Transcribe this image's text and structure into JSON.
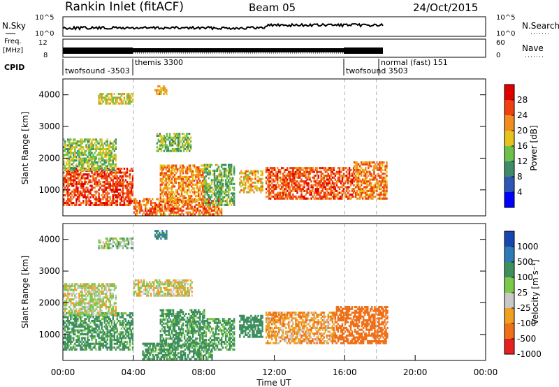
{
  "header": {
    "station": "Rankin Inlet (fitACF)",
    "beam": "Beam 05",
    "date": "24/Oct/2015"
  },
  "status_panels": {
    "nsky_label": "N.Sky",
    "nsky_ticks": [
      "10^5",
      "10^0"
    ],
    "nsearch_label": "N.Search",
    "nsearch_ticks": [
      "10^5",
      "10^0"
    ],
    "freq_label_1": "Freq.",
    "freq_label_2": "[MHz]",
    "freq_ticks": [
      "12",
      "8"
    ],
    "nave_label": "Nave",
    "nave_ticks": [
      "60",
      "0"
    ],
    "cpid_label": "CPID",
    "cpid_labels": [
      "twofsound -3503",
      "themis 3300",
      "twofsound 3503",
      "normal (fast) 151"
    ]
  },
  "chart_data": [
    {
      "type": "heatmap",
      "title": "Power",
      "ylabel": "Slant Range [km]",
      "ylim": [
        180,
        4500
      ],
      "xlim": [
        0,
        24
      ],
      "yticks": [
        "1000",
        "2000",
        "3000",
        "4000"
      ],
      "xticks": [
        "00:00",
        "04:00",
        "08:00",
        "12:00",
        "16:00",
        "20:00",
        "00:00"
      ],
      "colorbar_label": "Power [dB]",
      "colorbar_ticks": [
        "4",
        "8",
        "12",
        "16",
        "20",
        "24",
        "28"
      ],
      "colors": [
        "#0000ff",
        "#2e56b8",
        "#3f8a68",
        "#6ac24a",
        "#e6c21c",
        "#f28c1e",
        "#f04010",
        "#e00000"
      ],
      "mode_boundaries_hours": [
        4.0,
        16.0,
        17.8
      ],
      "echo_regions": [
        {
          "t0": 0.0,
          "t1": 4.0,
          "r0": 500,
          "r1": 1700,
          "v": 26
        },
        {
          "t0": 0.0,
          "t1": 3.0,
          "r0": 1600,
          "r1": 2600,
          "v": 15
        },
        {
          "t0": 4.0,
          "t1": 9.0,
          "r0": 200,
          "r1": 700,
          "v": 24
        },
        {
          "t0": 5.5,
          "t1": 8.0,
          "r0": 600,
          "r1": 1800,
          "v": 22
        },
        {
          "t0": 8.0,
          "t1": 9.7,
          "r0": 500,
          "r1": 1800,
          "v": 13
        },
        {
          "t0": 10.0,
          "t1": 11.3,
          "r0": 900,
          "r1": 1600,
          "v": 20
        },
        {
          "t0": 11.5,
          "t1": 16.5,
          "r0": 700,
          "r1": 1700,
          "v": 25
        },
        {
          "t0": 16.5,
          "t1": 18.4,
          "r0": 700,
          "r1": 1900,
          "v": 23
        },
        {
          "t0": 5.3,
          "t1": 7.3,
          "r0": 2200,
          "r1": 2750,
          "v": 14
        },
        {
          "t0": 2.0,
          "t1": 4.0,
          "r0": 3700,
          "r1": 4050,
          "v": 18
        },
        {
          "t0": 5.2,
          "t1": 5.9,
          "r0": 4000,
          "r1": 4300,
          "v": 20
        }
      ]
    },
    {
      "type": "heatmap",
      "title": "Velocity",
      "ylabel": "Slant Range [km]",
      "ylim": [
        180,
        4500
      ],
      "xlim": [
        0,
        24
      ],
      "xlabel": "Time UT",
      "yticks": [
        "1000",
        "2000",
        "3000",
        "4000"
      ],
      "xticks": [
        "00:00",
        "04:00",
        "08:00",
        "12:00",
        "16:00",
        "20:00",
        "00:00"
      ],
      "colorbar_label": "Velocity [m s⁻¹]",
      "colorbar_ticks": [
        "1000",
        "500",
        "100",
        "25",
        "-25",
        "-100",
        "-500",
        "-1000"
      ],
      "colors": [
        "#1846b0",
        "#2e7ab8",
        "#3e8f5e",
        "#7cc84a",
        "#c8c8c8",
        "#f0a020",
        "#f07018",
        "#e62020"
      ],
      "mode_boundaries_hours": [
        4.0,
        16.0,
        17.8
      ],
      "echo_regions": [
        {
          "t0": 0.0,
          "t1": 4.0,
          "r0": 500,
          "r1": 1700,
          "v": 150
        },
        {
          "t0": 0.0,
          "t1": 3.0,
          "r0": 1600,
          "r1": 2600,
          "v": 20
        },
        {
          "t0": 4.5,
          "t1": 8.5,
          "r0": 200,
          "r1": 700,
          "v": 150
        },
        {
          "t0": 5.5,
          "t1": 8.0,
          "r0": 600,
          "r1": 1800,
          "v": 150
        },
        {
          "t0": 8.0,
          "t1": 9.7,
          "r0": 500,
          "r1": 1500,
          "v": 130
        },
        {
          "t0": 10.0,
          "t1": 11.3,
          "r0": 900,
          "r1": 1600,
          "v": 200
        },
        {
          "t0": 11.5,
          "t1": 15.5,
          "r0": 700,
          "r1": 1700,
          "v": -80
        },
        {
          "t0": 15.5,
          "t1": 18.4,
          "r0": 700,
          "r1": 1900,
          "v": -300
        },
        {
          "t0": 4.0,
          "t1": 7.3,
          "r0": 2200,
          "r1": 2700,
          "v": 0
        },
        {
          "t0": 2.0,
          "t1": 4.0,
          "r0": 3700,
          "r1": 4050,
          "v": 50
        },
        {
          "t0": 5.2,
          "t1": 5.9,
          "r0": 4000,
          "r1": 4300,
          "v": 500
        }
      ]
    }
  ]
}
